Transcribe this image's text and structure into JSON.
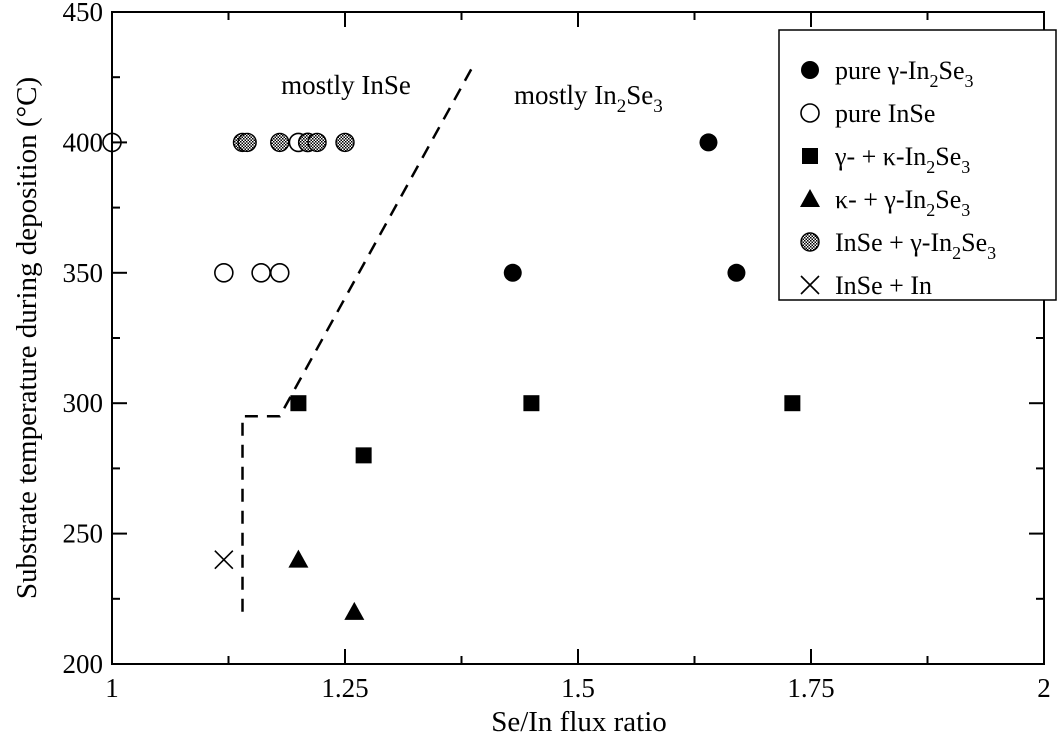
{
  "chart_data": {
    "type": "scatter",
    "title": "",
    "xlabel": "Se/In flux ratio",
    "ylabel": "Substrate temperature during deposition (°C)",
    "xlim": [
      1,
      2
    ],
    "ylim": [
      200,
      450
    ],
    "x_major_ticks": [
      1,
      1.25,
      1.5,
      1.75,
      2
    ],
    "x_tick_labels": [
      "1",
      "1.25",
      "1.5",
      "1.75",
      "2"
    ],
    "x_minor_ticks": [
      1.125,
      1.375,
      1.625,
      1.875
    ],
    "y_major_ticks": [
      200,
      250,
      300,
      350,
      400,
      450
    ],
    "y_tick_labels": [
      "200",
      "250",
      "300",
      "350",
      "400",
      "450"
    ],
    "y_minor_ticks": [
      225,
      275,
      325,
      375,
      425
    ],
    "grid": false,
    "legend_position": "top-right",
    "annotations": {
      "left_region": "mostly InSe",
      "right_region_prefix": "mostly In",
      "right_region_sub1": "2",
      "right_region_mid": "Se",
      "right_region_sub2": "3"
    },
    "boundary_line": {
      "style": "dashed",
      "x": [
        1.14,
        1.14,
        1.18,
        1.39
      ],
      "y": [
        220,
        295,
        295,
        431
      ]
    },
    "series": [
      {
        "name": "pure γ-In2Se3",
        "marker": "filled-circle",
        "legend": {
          "a": "pure γ-In",
          "s1": "2",
          "b": "Se",
          "s2": "3"
        },
        "x": [
          1.64,
          1.43,
          1.67
        ],
        "y": [
          400,
          350,
          350
        ]
      },
      {
        "name": "pure InSe",
        "marker": "open-circle",
        "legend": {
          "a": "pure InSe",
          "s1": "",
          "b": "",
          "s2": ""
        },
        "x": [
          1.0,
          1.2,
          1.21,
          1.12,
          1.16,
          1.18
        ],
        "y": [
          400,
          400,
          400,
          350,
          350,
          350
        ]
      },
      {
        "name": "γ- + κ-In2Se3",
        "marker": "filled-square",
        "legend": {
          "a": "γ- + κ-In",
          "s1": "2",
          "b": "Se",
          "s2": "3"
        },
        "x": [
          1.2,
          1.45,
          1.73,
          1.27
        ],
        "y": [
          300,
          300,
          300,
          280
        ]
      },
      {
        "name": "κ- + γ-In2Se3",
        "marker": "filled-triangle",
        "legend": {
          "a": "κ- + γ-In",
          "s1": "2",
          "b": "Se",
          "s2": "3"
        },
        "x": [
          1.2,
          1.26
        ],
        "y": [
          240,
          220
        ]
      },
      {
        "name": "InSe + γ-In2Se3",
        "marker": "hatched-circle",
        "legend": {
          "a": "InSe + γ-In",
          "s1": "2",
          "b": "Se",
          "s2": "3"
        },
        "x": [
          1.14,
          1.145,
          1.18,
          1.21,
          1.22,
          1.25
        ],
        "y": [
          400,
          400,
          400,
          400,
          400,
          400
        ]
      },
      {
        "name": "InSe + In",
        "marker": "cross",
        "legend": {
          "a": "InSe + In",
          "s1": "",
          "b": "",
          "s2": ""
        },
        "x": [
          1.12
        ],
        "y": [
          240
        ]
      }
    ]
  }
}
